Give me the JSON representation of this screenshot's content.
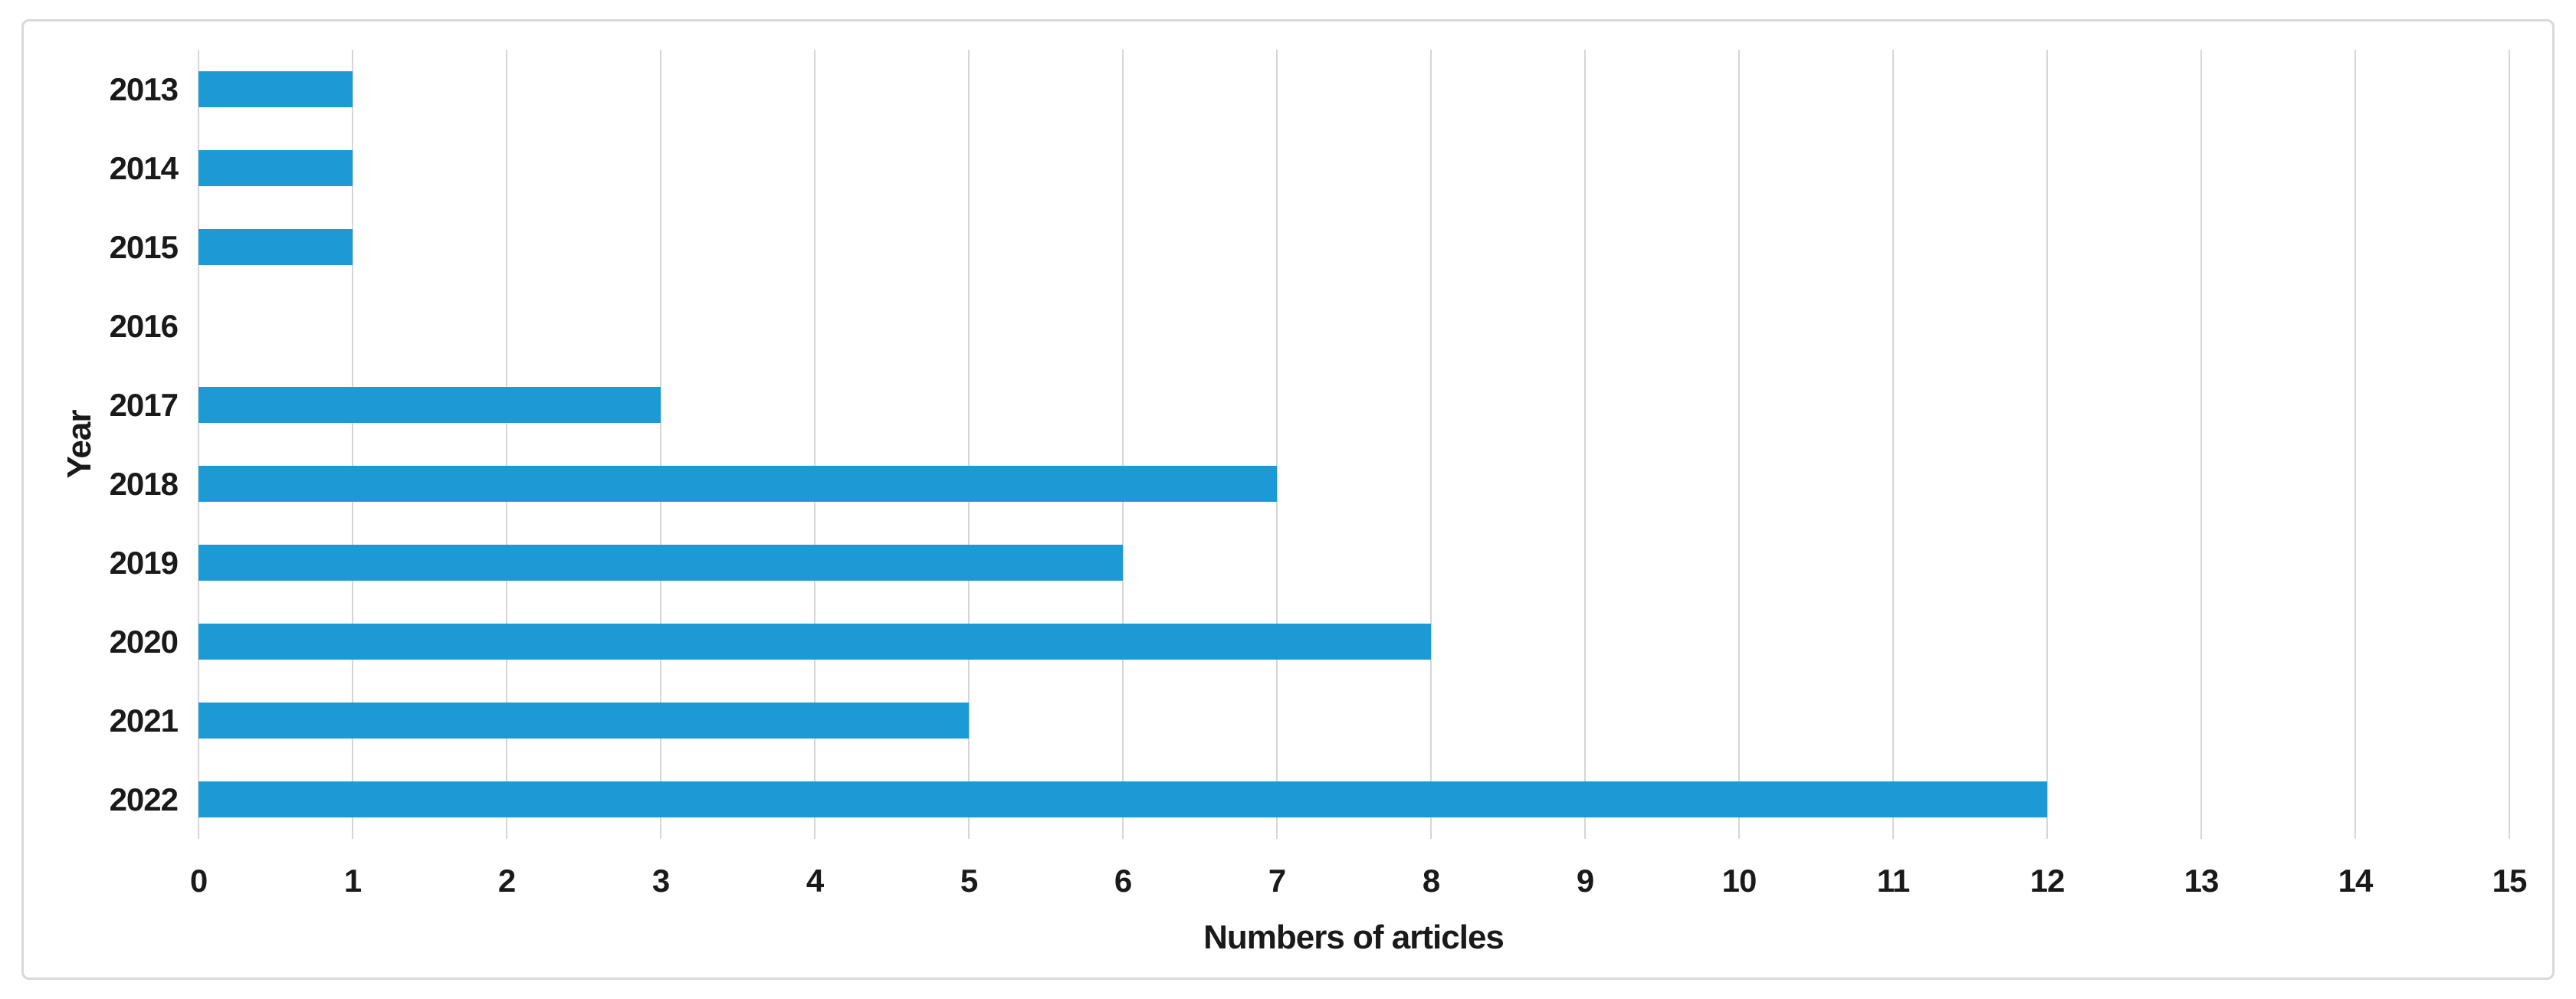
{
  "chart_data": {
    "type": "bar",
    "orientation": "horizontal",
    "title": "",
    "xlabel": "Numbers of articles",
    "ylabel": "Year",
    "categories": [
      "2013",
      "2014",
      "2015",
      "2016",
      "2017",
      "2018",
      "2019",
      "2020",
      "2021",
      "2022"
    ],
    "values": [
      1,
      1,
      1,
      0,
      3,
      7,
      6,
      8,
      5,
      12
    ],
    "xlim": [
      0,
      15
    ],
    "x_tick_step": 1,
    "x_tick_labels": [
      "0",
      "1",
      "2",
      "3",
      "4",
      "5",
      "6",
      "7",
      "8",
      "9",
      "10",
      "11",
      "12",
      "13",
      "14",
      "15"
    ],
    "grid": "vertical-major-on",
    "legend_position": "none",
    "colors": {
      "bar": "#1C9AD6",
      "gridline": "#D6D6D6",
      "card_border": "#D9D9D9",
      "text": "#1A1A1A",
      "background": "#FFFFFF"
    }
  }
}
